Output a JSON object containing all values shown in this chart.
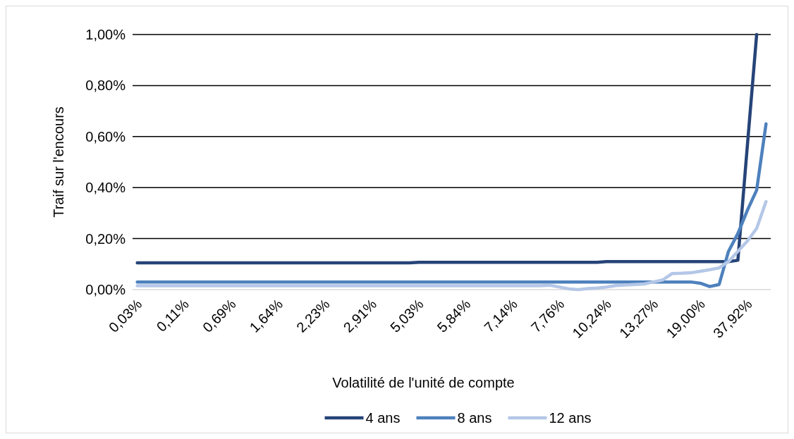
{
  "chart_data": {
    "type": "line",
    "xlabel": "Volatilité de l'unité de compte",
    "ylabel": "Traif sur l'encours",
    "categories": [
      "0,03%",
      null,
      null,
      null,
      null,
      "0,11%",
      null,
      null,
      null,
      null,
      "0,69%",
      null,
      null,
      null,
      null,
      "1,64%",
      null,
      null,
      null,
      null,
      "2,23%",
      null,
      null,
      null,
      null,
      "2,91%",
      null,
      null,
      null,
      null,
      "5,03%",
      null,
      null,
      null,
      null,
      "5,84%",
      null,
      null,
      null,
      null,
      "7,14%",
      null,
      null,
      null,
      null,
      "7,76%",
      null,
      null,
      null,
      null,
      "10,24%",
      null,
      null,
      null,
      null,
      "13,27%",
      null,
      null,
      null,
      null,
      "19,00%",
      null,
      null,
      null,
      null,
      "37,92%",
      null,
      null
    ],
    "series": [
      {
        "name": "4 ans",
        "color": "#264478",
        "values": [
          0.105,
          0.105,
          0.105,
          0.105,
          0.105,
          0.105,
          0.105,
          0.105,
          0.105,
          0.105,
          0.105,
          0.105,
          0.105,
          0.105,
          0.105,
          0.105,
          0.105,
          0.105,
          0.105,
          0.105,
          0.105,
          0.105,
          0.105,
          0.105,
          0.105,
          0.105,
          0.105,
          0.105,
          0.105,
          0.105,
          0.107,
          0.107,
          0.107,
          0.107,
          0.107,
          0.107,
          0.107,
          0.107,
          0.107,
          0.107,
          0.107,
          0.107,
          0.107,
          0.107,
          0.107,
          0.107,
          0.107,
          0.107,
          0.107,
          0.107,
          0.11,
          0.11,
          0.11,
          0.11,
          0.11,
          0.11,
          0.11,
          0.11,
          0.11,
          0.11,
          0.11,
          0.11,
          0.11,
          0.11,
          0.115,
          0.56,
          1.0,
          null
        ]
      },
      {
        "name": "8 ans",
        "color": "#4e81bd",
        "values": [
          0.03,
          0.03,
          0.03,
          0.03,
          0.03,
          0.03,
          0.03,
          0.03,
          0.03,
          0.03,
          0.03,
          0.03,
          0.03,
          0.03,
          0.03,
          0.03,
          0.03,
          0.03,
          0.03,
          0.03,
          0.03,
          0.03,
          0.03,
          0.03,
          0.03,
          0.03,
          0.03,
          0.03,
          0.03,
          0.03,
          0.03,
          0.03,
          0.03,
          0.03,
          0.03,
          0.03,
          0.03,
          0.03,
          0.03,
          0.03,
          0.03,
          0.03,
          0.03,
          0.03,
          0.03,
          0.03,
          0.03,
          0.03,
          0.03,
          0.03,
          0.03,
          0.03,
          0.03,
          0.03,
          0.03,
          0.03,
          0.03,
          0.03,
          0.03,
          0.03,
          0.025,
          0.012,
          0.02,
          0.15,
          0.22,
          0.31,
          0.39,
          0.65
        ]
      },
      {
        "name": "12 ans",
        "color": "#b4c7e7",
        "values": [
          0.015,
          0.015,
          0.015,
          0.015,
          0.015,
          0.015,
          0.015,
          0.015,
          0.015,
          0.015,
          0.015,
          0.015,
          0.015,
          0.015,
          0.015,
          0.015,
          0.015,
          0.015,
          0.015,
          0.015,
          0.015,
          0.015,
          0.015,
          0.015,
          0.015,
          0.015,
          0.015,
          0.015,
          0.015,
          0.015,
          0.015,
          0.015,
          0.015,
          0.015,
          0.015,
          0.015,
          0.015,
          0.015,
          0.015,
          0.015,
          0.015,
          0.015,
          0.015,
          0.015,
          0.017,
          0.01,
          0.003,
          0.0,
          0.004,
          0.006,
          0.01,
          0.016,
          0.018,
          0.02,
          0.022,
          0.03,
          0.038,
          0.063,
          0.064,
          0.066,
          0.072,
          0.078,
          0.085,
          0.11,
          0.15,
          0.19,
          0.24,
          0.345
        ]
      }
    ],
    "ylim": [
      0,
      1
    ],
    "yticks": [
      {
        "value": 0,
        "label": "0,00%"
      },
      {
        "value": 0.2,
        "label": "0,20%"
      },
      {
        "value": 0.4,
        "label": "0,40%"
      },
      {
        "value": 0.6,
        "label": "0,60%"
      },
      {
        "value": 0.8,
        "label": "0,80%"
      },
      {
        "value": 1,
        "label": "1,00%"
      }
    ],
    "grid": "y",
    "legend": "bottom",
    "marker": "none",
    "line_style": "solid"
  }
}
